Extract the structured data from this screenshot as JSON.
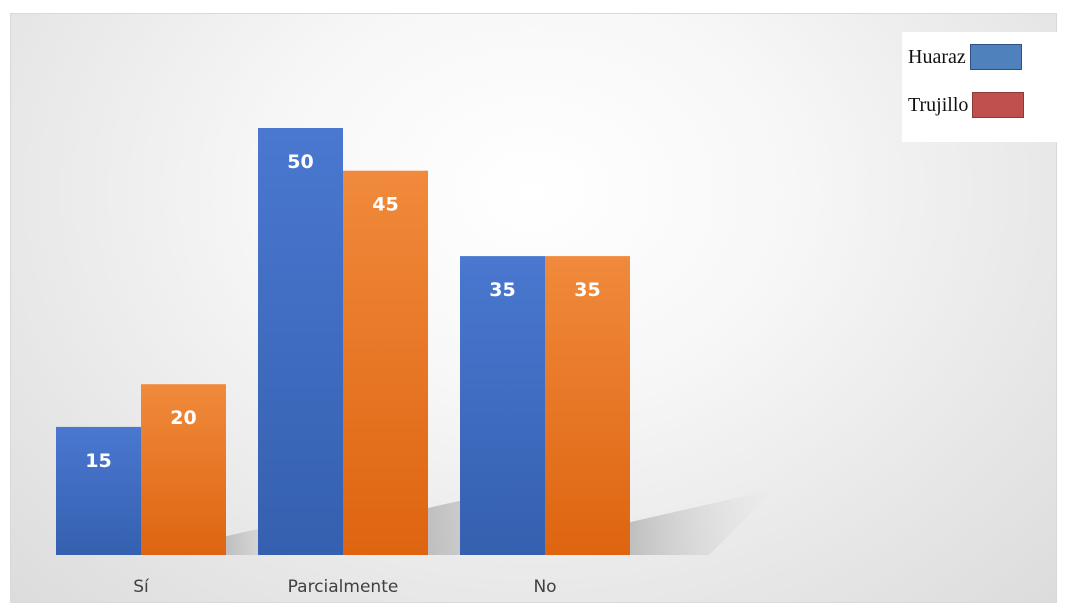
{
  "chart_data": {
    "type": "bar",
    "categories": [
      "Sí",
      "Parcialmente",
      "No"
    ],
    "series": [
      {
        "name": "Huaraz",
        "values": [
          15,
          50,
          35
        ],
        "color": "#4472c4"
      },
      {
        "name": "Trujillo",
        "values": [
          20,
          45,
          35
        ],
        "color": "#ed7d31"
      }
    ],
    "title": "",
    "xlabel": "",
    "ylabel": "",
    "ylim": [
      0,
      50
    ],
    "grid": false,
    "legend_placement": "top-right"
  },
  "legend": {
    "items": [
      {
        "label": "Huaraz",
        "swatch_color": "#4f81bd"
      },
      {
        "label": "Trujillo",
        "swatch_color": "#c0504d"
      }
    ]
  }
}
